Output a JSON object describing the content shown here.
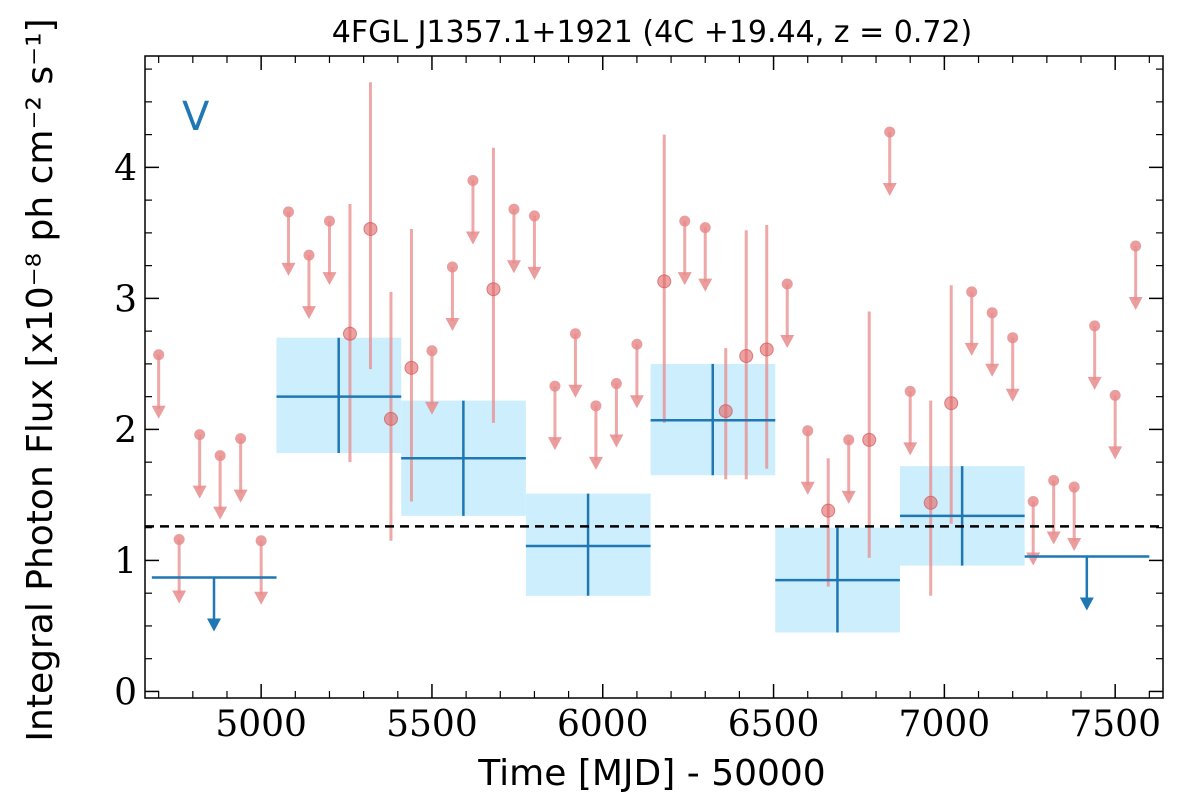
{
  "chart_data": {
    "type": "scatter",
    "title": "4FGL J1357.1+1921 (4C +19.44, z = 0.72)",
    "panel_label": "V",
    "xlabel": "Time [MJD] - 50000",
    "ylabel": "Integral Photon Flux [x10⁻⁸ ph cm⁻² s⁻¹]",
    "xlim": [
      4660,
      7640
    ],
    "ylim": [
      -0.05,
      4.85
    ],
    "xticks": [
      5000,
      5500,
      6000,
      6500,
      7000,
      7500
    ],
    "xtick_labels": [
      "5000",
      "5500",
      "6000",
      "6500",
      "7000",
      "7500"
    ],
    "yticks": [
      0,
      1,
      2,
      3,
      4
    ],
    "ytick_labels": [
      "0",
      "1",
      "2",
      "3",
      "4"
    ],
    "grid": false,
    "colors": {
      "short_bins": "#e88b8b",
      "long_bins": "#1f77b4",
      "long_band": "#cdeefd",
      "mean_line": "#000000"
    },
    "mean_flux": 1.26,
    "series": [
      {
        "bin_size": "short",
        "detections": [
          {
            "x": 5260,
            "y": 2.73,
            "lo": 1.75,
            "hi": 3.72
          },
          {
            "x": 5320,
            "y": 3.53,
            "lo": 2.46,
            "hi": 4.65
          },
          {
            "x": 5380,
            "y": 2.08,
            "lo": 1.15,
            "hi": 3.05
          },
          {
            "x": 5440,
            "y": 2.47,
            "lo": 1.45,
            "hi": 3.53
          },
          {
            "x": 5680,
            "y": 3.07,
            "lo": 2.05,
            "hi": 4.15
          },
          {
            "x": 6180,
            "y": 3.13,
            "lo": 2.05,
            "hi": 4.25
          },
          {
            "x": 6360,
            "y": 2.14,
            "lo": 1.62,
            "hi": 2.62
          },
          {
            "x": 6420,
            "y": 2.56,
            "lo": 1.62,
            "hi": 3.52
          },
          {
            "x": 6480,
            "y": 2.61,
            "lo": 1.7,
            "hi": 3.56
          },
          {
            "x": 6660,
            "y": 1.38,
            "lo": 0.8,
            "hi": 1.78
          },
          {
            "x": 6780,
            "y": 1.92,
            "lo": 1.02,
            "hi": 2.9
          },
          {
            "x": 6960,
            "y": 1.44,
            "lo": 0.73,
            "hi": 2.22
          },
          {
            "x": 7020,
            "y": 2.2,
            "lo": 1.28,
            "hi": 3.1
          }
        ],
        "upper_limits": [
          {
            "x": 4700,
            "y": 2.57
          },
          {
            "x": 4760,
            "y": 1.16
          },
          {
            "x": 4820,
            "y": 1.96
          },
          {
            "x": 4880,
            "y": 1.8
          },
          {
            "x": 4940,
            "y": 1.93
          },
          {
            "x": 5000,
            "y": 1.15
          },
          {
            "x": 5080,
            "y": 3.66
          },
          {
            "x": 5140,
            "y": 3.33
          },
          {
            "x": 5200,
            "y": 3.59
          },
          {
            "x": 5500,
            "y": 2.6
          },
          {
            "x": 5560,
            "y": 3.24
          },
          {
            "x": 5620,
            "y": 3.9
          },
          {
            "x": 5740,
            "y": 3.68
          },
          {
            "x": 5800,
            "y": 3.63
          },
          {
            "x": 5860,
            "y": 2.33
          },
          {
            "x": 5920,
            "y": 2.73
          },
          {
            "x": 5980,
            "y": 2.18
          },
          {
            "x": 6040,
            "y": 2.35
          },
          {
            "x": 6100,
            "y": 2.65
          },
          {
            "x": 6240,
            "y": 3.59
          },
          {
            "x": 6300,
            "y": 3.54
          },
          {
            "x": 6540,
            "y": 3.11
          },
          {
            "x": 6600,
            "y": 1.99
          },
          {
            "x": 6720,
            "y": 1.92
          },
          {
            "x": 6840,
            "y": 4.27
          },
          {
            "x": 6900,
            "y": 2.29
          },
          {
            "x": 7080,
            "y": 3.05
          },
          {
            "x": 7140,
            "y": 2.89
          },
          {
            "x": 7200,
            "y": 2.7
          },
          {
            "x": 7260,
            "y": 1.45
          },
          {
            "x": 7320,
            "y": 1.61
          },
          {
            "x": 7380,
            "y": 1.56
          },
          {
            "x": 7440,
            "y": 2.79
          },
          {
            "x": 7500,
            "y": 2.26
          },
          {
            "x": 7560,
            "y": 3.4
          }
        ]
      },
      {
        "bin_size": "long",
        "detections": [
          {
            "x_start": 5045,
            "x_end": 5410,
            "x": 5227,
            "y": 2.25,
            "lo": 1.82,
            "hi": 2.7
          },
          {
            "x_start": 5410,
            "x_end": 5775,
            "x": 5592,
            "y": 1.78,
            "lo": 1.34,
            "hi": 2.22
          },
          {
            "x_start": 5775,
            "x_end": 6140,
            "x": 5957,
            "y": 1.11,
            "lo": 0.73,
            "hi": 1.51
          },
          {
            "x_start": 6140,
            "x_end": 6505,
            "x": 6322,
            "y": 2.07,
            "lo": 1.65,
            "hi": 2.5
          },
          {
            "x_start": 6505,
            "x_end": 6870,
            "x": 6687,
            "y": 0.85,
            "lo": 0.45,
            "hi": 1.25
          },
          {
            "x_start": 6870,
            "x_end": 7235,
            "x": 7052,
            "y": 1.34,
            "lo": 0.96,
            "hi": 1.72
          }
        ],
        "upper_limits": [
          {
            "x_start": 4680,
            "x_end": 5045,
            "x": 4862,
            "y": 0.87
          },
          {
            "x_start": 7235,
            "x_end": 7600,
            "x": 7417,
            "y": 1.03
          }
        ]
      }
    ]
  }
}
